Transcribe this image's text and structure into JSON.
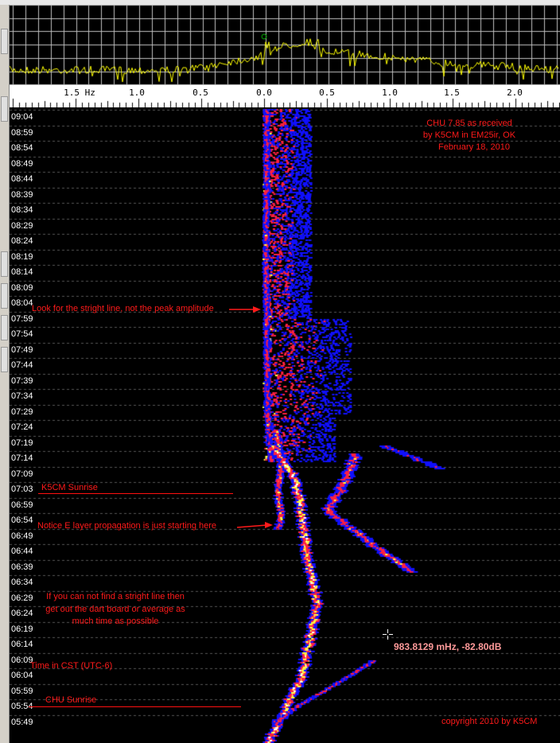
{
  "spectrum": {
    "trace_color": "#ffff00",
    "grid_color": "#c0c0c0",
    "background": "#000000",
    "peak_marker_color": "#00c000"
  },
  "frequency_axis": {
    "unit": "Hz",
    "labels": [
      "1.5 Hz",
      "1.0",
      "0.5",
      "0.0",
      "0.5",
      "1.0",
      "1.5",
      "2.0"
    ]
  },
  "waterfall": {
    "colormap": [
      "#000000",
      "#1010ff",
      "#ff2040",
      "#ffff40",
      "#ffffff"
    ],
    "time_labels": [
      "09:04",
      "08:59",
      "08:54",
      "08:49",
      "08:44",
      "08:39",
      "08:34",
      "08:29",
      "08:24",
      "08:19",
      "08:14",
      "08:09",
      "08:04",
      "07:59",
      "07:54",
      "07:49",
      "07:44",
      "07:39",
      "07:34",
      "07:29",
      "07:24",
      "07:19",
      "07:14",
      "07:09",
      "07:03",
      "06:59",
      "06:54",
      "06:49",
      "06:44",
      "06:39",
      "06:34",
      "06:29",
      "06:24",
      "06:19",
      "06:14",
      "06:09",
      "06:04",
      "05:59",
      "05:54",
      "05:49"
    ]
  },
  "annotations": {
    "title_lines": [
      "CHU 7.85 as received",
      "by K5CM in EM25ir, OK",
      "February 18, 2010"
    ],
    "straight_line": "Look for the stright line, not the peak amplitude",
    "k5cm_sunrise": "K5CM Sunrise",
    "e_layer": "Notice E layer propagation is just starting here",
    "dart_board": [
      "If you can not find a stright line then",
      "get out the dart board or average as",
      "much time as possible"
    ],
    "time_zone": "Time in CST (UTC-6)",
    "chu_sunrise": "CHU Sunrise",
    "copyright": "copyright 2010 by K5CM",
    "color": "#ff1a1a"
  },
  "cursor_readout": "983.8129 mHz, -82.80dB"
}
